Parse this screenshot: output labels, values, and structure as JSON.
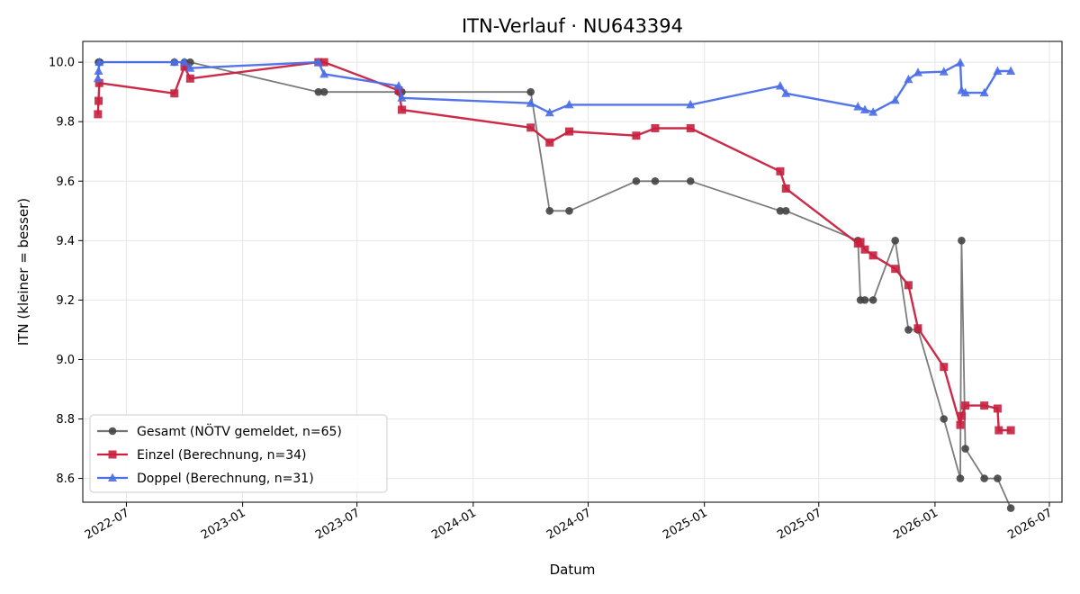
{
  "chart_data": {
    "type": "line",
    "title": "ITN-Verlauf · NU643394",
    "xlabel": "Datum",
    "ylabel": "ITN  (kleiner = besser)",
    "xlim": [
      "2022-04-23",
      "2026-07-21"
    ],
    "ylim": [
      8.52,
      10.07
    ],
    "grid": true,
    "legend_position": "lower-left",
    "x_ticks": [
      "2022-07",
      "2023-01",
      "2023-07",
      "2024-01",
      "2024-07",
      "2025-01",
      "2025-07",
      "2026-01",
      "2026-07"
    ],
    "y_ticks": [
      "8.6",
      "8.8",
      "9.0",
      "9.2",
      "9.4",
      "9.6",
      "9.8",
      "10.0"
    ],
    "series": [
      {
        "name": "Gesamt (NÖTV gemeldet, n=65)",
        "color": "#444444",
        "marker": "circle",
        "points": [
          [
            "2022-05-18",
            10.0
          ],
          [
            "2022-05-19",
            10.0
          ],
          [
            "2022-05-20",
            10.0
          ],
          [
            "2022-09-15",
            10.0
          ],
          [
            "2022-10-01",
            10.0
          ],
          [
            "2022-10-10",
            10.0
          ],
          [
            "2023-05-01",
            9.9
          ],
          [
            "2023-05-10",
            9.9
          ],
          [
            "2023-09-05",
            9.9
          ],
          [
            "2023-09-10",
            9.9
          ],
          [
            "2024-04-01",
            9.9
          ],
          [
            "2024-05-01",
            9.5
          ],
          [
            "2024-06-01",
            9.5
          ],
          [
            "2024-09-15",
            9.6
          ],
          [
            "2024-10-15",
            9.6
          ],
          [
            "2024-12-10",
            9.6
          ],
          [
            "2025-05-01",
            9.5
          ],
          [
            "2025-05-10",
            9.5
          ],
          [
            "2025-09-01",
            9.4
          ],
          [
            "2025-09-05",
            9.2
          ],
          [
            "2025-09-12",
            9.2
          ],
          [
            "2025-09-25",
            9.2
          ],
          [
            "2025-10-30",
            9.4
          ],
          [
            "2025-11-20",
            9.1
          ],
          [
            "2025-12-05",
            9.1
          ],
          [
            "2026-01-15",
            8.8
          ],
          [
            "2026-02-10",
            8.6
          ],
          [
            "2026-02-12",
            9.4
          ],
          [
            "2026-02-18",
            8.7
          ],
          [
            "2026-03-20",
            8.6
          ],
          [
            "2026-04-10",
            8.6
          ],
          [
            "2026-05-01",
            8.5
          ]
        ]
      },
      {
        "name": "Einzel (Berechnung, n=34)",
        "color": "#c8203e",
        "marker": "square",
        "points": [
          [
            "2022-05-17",
            9.825
          ],
          [
            "2022-05-18",
            9.87
          ],
          [
            "2022-05-19",
            9.93
          ],
          [
            "2022-09-15",
            9.895
          ],
          [
            "2022-10-01",
            9.985
          ],
          [
            "2022-10-10",
            9.945
          ],
          [
            "2023-05-01",
            10.0
          ],
          [
            "2023-05-10",
            10.0
          ],
          [
            "2023-09-05",
            9.905
          ],
          [
            "2023-09-10",
            9.84
          ],
          [
            "2024-04-01",
            9.78
          ],
          [
            "2024-05-01",
            9.73
          ],
          [
            "2024-06-01",
            9.767
          ],
          [
            "2024-09-15",
            9.753
          ],
          [
            "2024-10-15",
            9.778
          ],
          [
            "2024-12-10",
            9.778
          ],
          [
            "2025-05-01",
            9.633
          ],
          [
            "2025-05-10",
            9.575
          ],
          [
            "2025-09-01",
            9.39
          ],
          [
            "2025-09-05",
            9.395
          ],
          [
            "2025-09-12",
            9.37
          ],
          [
            "2025-09-25",
            9.35
          ],
          [
            "2025-10-30",
            9.305
          ],
          [
            "2025-11-20",
            9.25
          ],
          [
            "2025-12-05",
            9.105
          ],
          [
            "2026-01-15",
            8.975
          ],
          [
            "2026-02-10",
            8.78
          ],
          [
            "2026-02-12",
            8.81
          ],
          [
            "2026-02-18",
            8.845
          ],
          [
            "2026-03-20",
            8.845
          ],
          [
            "2026-04-10",
            8.835
          ],
          [
            "2026-04-12",
            8.762
          ],
          [
            "2026-05-01",
            8.762
          ]
        ]
      },
      {
        "name": "Doppel (Berechnung, n=31)",
        "color": "#4a6ee8",
        "marker": "triangle",
        "points": [
          [
            "2022-05-17",
            9.945
          ],
          [
            "2022-05-18",
            9.97
          ],
          [
            "2022-05-19",
            10.0
          ],
          [
            "2022-09-15",
            10.0
          ],
          [
            "2022-10-01",
            10.0
          ],
          [
            "2022-10-10",
            9.98
          ],
          [
            "2023-05-01",
            10.0
          ],
          [
            "2023-05-10",
            9.96
          ],
          [
            "2023-09-05",
            9.92
          ],
          [
            "2023-09-10",
            9.88
          ],
          [
            "2024-04-01",
            9.862
          ],
          [
            "2024-05-01",
            9.83
          ],
          [
            "2024-06-01",
            9.857
          ],
          [
            "2024-12-10",
            9.857
          ],
          [
            "2025-05-01",
            9.92
          ],
          [
            "2025-05-10",
            9.895
          ],
          [
            "2025-09-01",
            9.85
          ],
          [
            "2025-09-12",
            9.84
          ],
          [
            "2025-09-25",
            9.832
          ],
          [
            "2025-10-30",
            9.872
          ],
          [
            "2025-11-20",
            9.942
          ],
          [
            "2025-12-05",
            9.965
          ],
          [
            "2026-01-15",
            9.968
          ],
          [
            "2026-02-10",
            9.998
          ],
          [
            "2026-02-12",
            9.905
          ],
          [
            "2026-02-18",
            9.897
          ],
          [
            "2026-03-20",
            9.897
          ],
          [
            "2026-04-10",
            9.97
          ],
          [
            "2026-05-01",
            9.97
          ]
        ]
      }
    ]
  }
}
